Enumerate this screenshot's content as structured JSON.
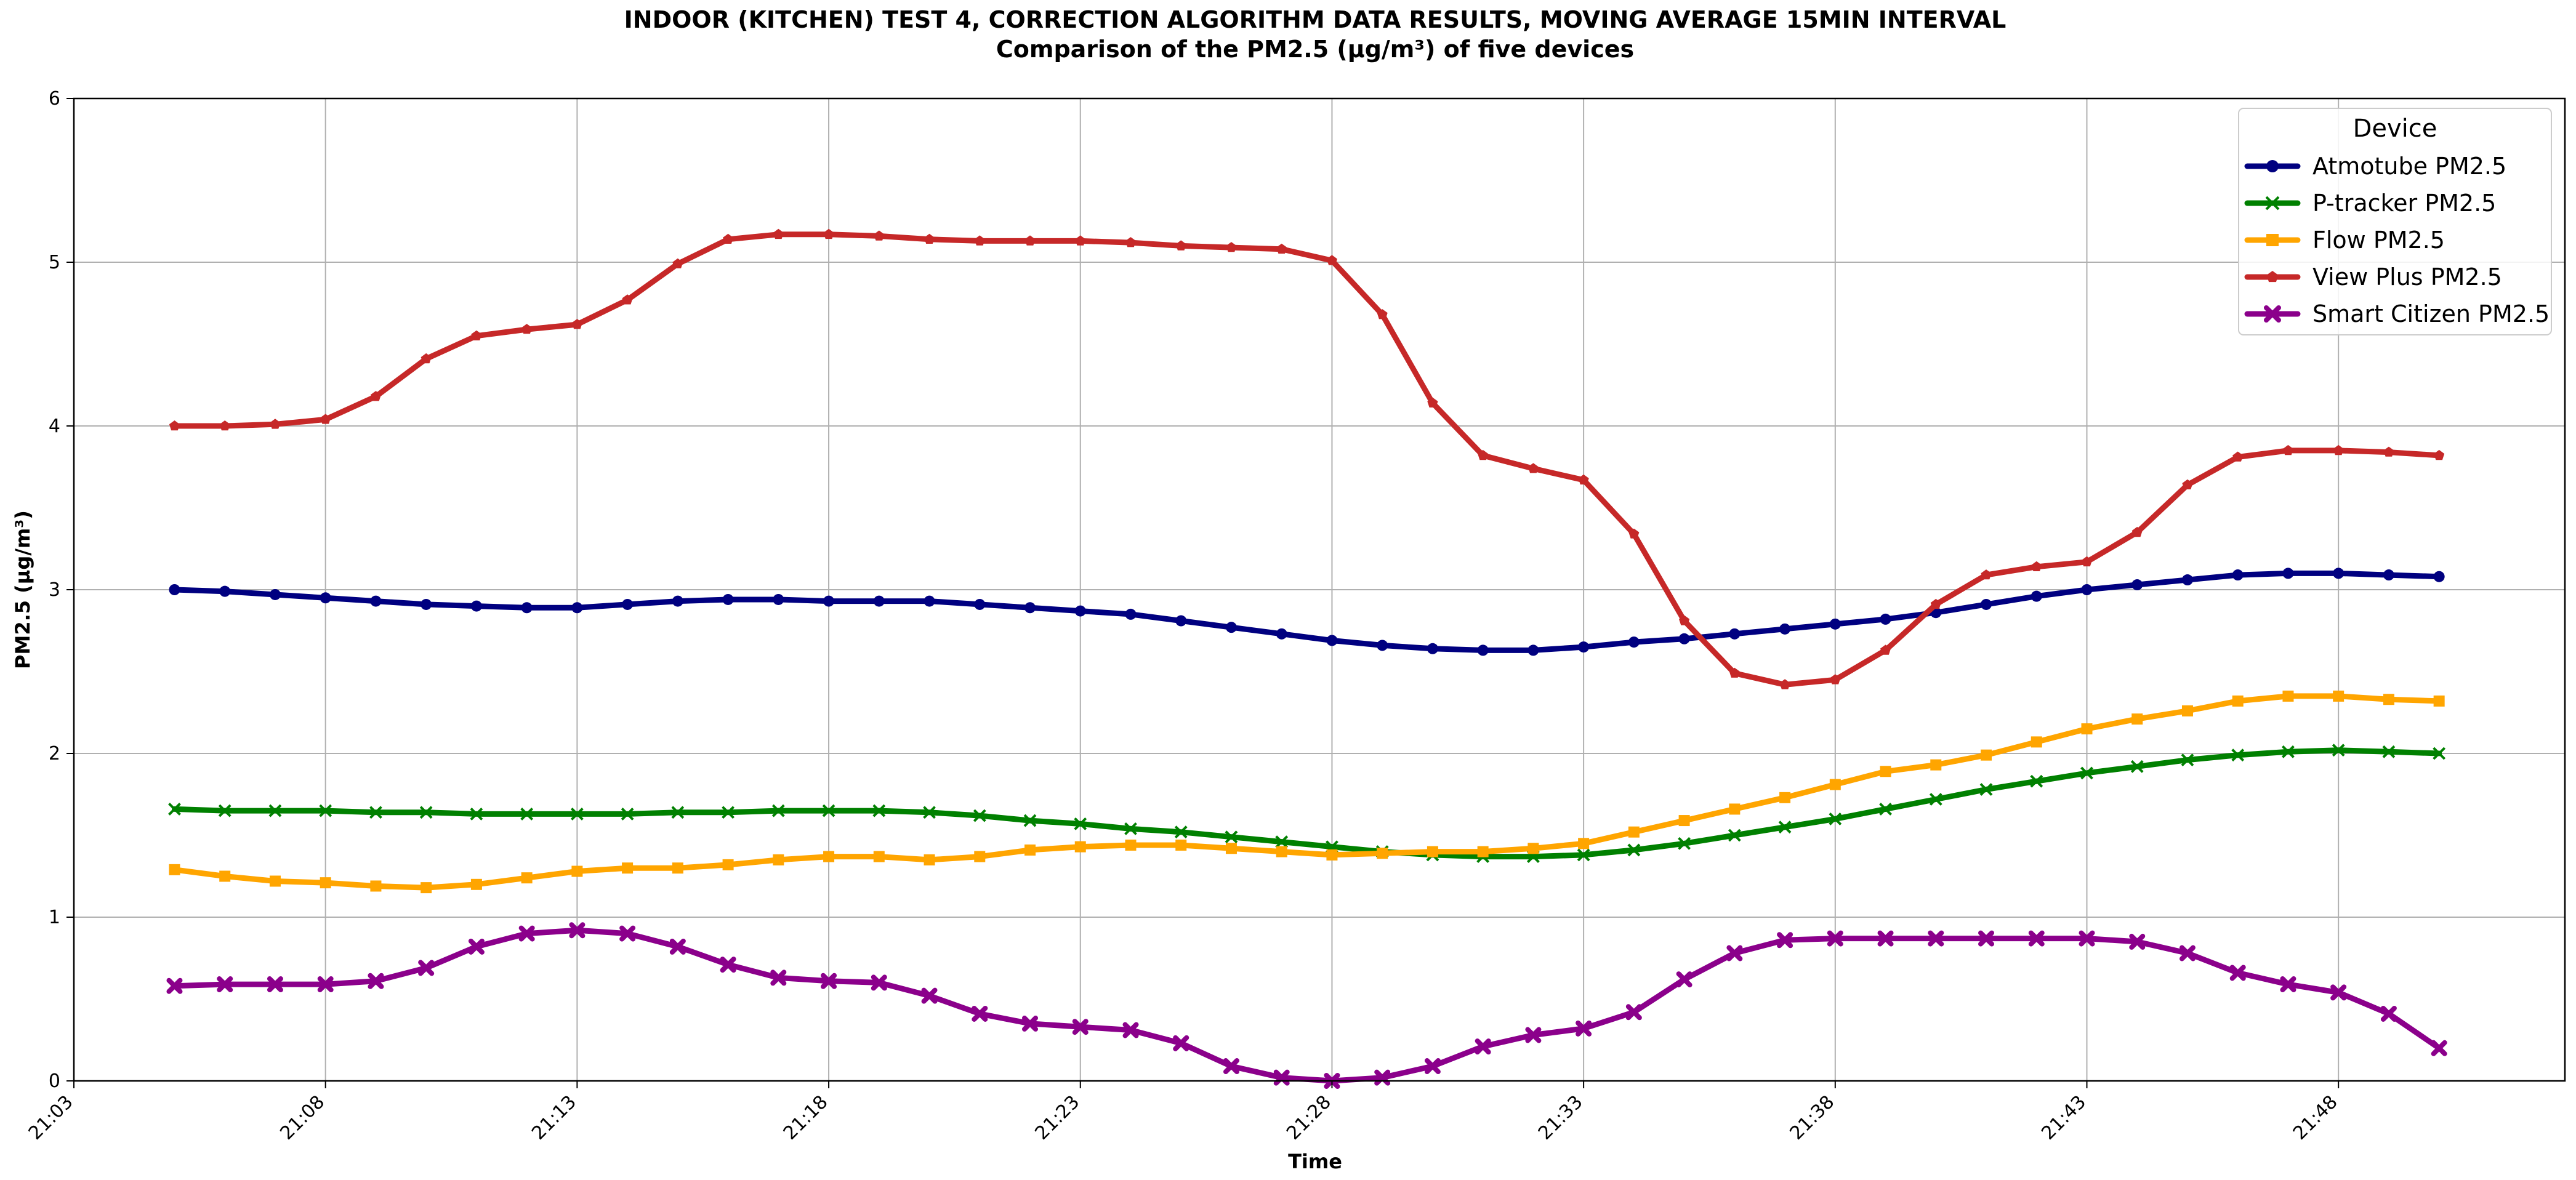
{
  "chart_data": {
    "type": "line",
    "title": "INDOOR (KITCHEN) TEST 4, CORRECTION ALGORITHM DATA RESULTS, MOVING AVERAGE 15MIN INTERVAL",
    "subtitle": "Comparison of the PM2.5 (µg/m³) of five devices",
    "xlabel": "Time",
    "ylabel": "PM2.5 (µg/m³)",
    "x_ticks": [
      "21:03",
      "21:08",
      "21:13",
      "21:18",
      "21:23",
      "21:28",
      "21:33",
      "21:38",
      "21:43",
      "21:48"
    ],
    "x_tick_minutes": [
      3,
      8,
      13,
      18,
      23,
      28,
      33,
      38,
      43,
      48
    ],
    "xlim_minutes": [
      3,
      52.5
    ],
    "y_ticks": [
      0,
      1,
      2,
      3,
      4,
      5,
      6
    ],
    "ylim": [
      0,
      6
    ],
    "grid": true,
    "legend": {
      "title": "Device",
      "location": "top-right"
    },
    "x_minutes": [
      5,
      6,
      7,
      8,
      9,
      10,
      11,
      12,
      13,
      14,
      15,
      16,
      17,
      18,
      19,
      20,
      21,
      22,
      23,
      24,
      25,
      26,
      27,
      28,
      29,
      30,
      31,
      32,
      33,
      34,
      35,
      36,
      37,
      38,
      39,
      40,
      41,
      42,
      43,
      44,
      45,
      46,
      47,
      48,
      49,
      50
    ],
    "series": [
      {
        "name": "Atmotube PM2.5",
        "color": "#000080",
        "marker": "circle",
        "values": [
          3.0,
          2.99,
          2.97,
          2.95,
          2.93,
          2.91,
          2.9,
          2.89,
          2.89,
          2.91,
          2.93,
          2.94,
          2.94,
          2.93,
          2.93,
          2.93,
          2.91,
          2.89,
          2.87,
          2.85,
          2.81,
          2.77,
          2.73,
          2.69,
          2.66,
          2.64,
          2.63,
          2.63,
          2.65,
          2.68,
          2.7,
          2.73,
          2.76,
          2.79,
          2.82,
          2.86,
          2.91,
          2.96,
          3.0,
          3.03,
          3.06,
          3.09,
          3.1,
          3.1,
          3.09,
          3.08
        ]
      },
      {
        "name": "P-tracker PM2.5",
        "color": "#008000",
        "marker": "x",
        "values": [
          1.66,
          1.65,
          1.65,
          1.65,
          1.64,
          1.64,
          1.63,
          1.63,
          1.63,
          1.63,
          1.64,
          1.64,
          1.65,
          1.65,
          1.65,
          1.64,
          1.62,
          1.59,
          1.57,
          1.54,
          1.52,
          1.49,
          1.46,
          1.43,
          1.4,
          1.38,
          1.37,
          1.37,
          1.38,
          1.41,
          1.45,
          1.5,
          1.55,
          1.6,
          1.66,
          1.72,
          1.78,
          1.83,
          1.88,
          1.92,
          1.96,
          1.99,
          2.01,
          2.02,
          2.01,
          2.0
        ]
      },
      {
        "name": "Flow PM2.5",
        "color": "#FFA500",
        "marker": "square",
        "values": [
          1.29,
          1.25,
          1.22,
          1.21,
          1.19,
          1.18,
          1.2,
          1.24,
          1.28,
          1.3,
          1.3,
          1.32,
          1.35,
          1.37,
          1.37,
          1.35,
          1.37,
          1.41,
          1.43,
          1.44,
          1.44,
          1.42,
          1.4,
          1.38,
          1.39,
          1.4,
          1.4,
          1.42,
          1.45,
          1.52,
          1.59,
          1.66,
          1.73,
          1.81,
          1.89,
          1.93,
          1.99,
          2.07,
          2.15,
          2.21,
          2.26,
          2.32,
          2.35,
          2.35,
          2.33,
          2.32
        ]
      },
      {
        "name": "View Plus PM2.5",
        "color": "#C62828",
        "marker": "pentagon",
        "values": [
          4.0,
          4.0,
          4.01,
          4.04,
          4.18,
          4.41,
          4.55,
          4.59,
          4.62,
          4.77,
          4.99,
          5.14,
          5.17,
          5.17,
          5.16,
          5.14,
          5.13,
          5.13,
          5.13,
          5.12,
          5.1,
          5.09,
          5.08,
          5.01,
          4.68,
          4.14,
          3.82,
          3.74,
          3.67,
          3.34,
          2.81,
          2.49,
          2.42,
          2.45,
          2.63,
          2.91,
          3.09,
          3.14,
          3.17,
          3.35,
          3.64,
          3.81,
          3.85,
          3.85,
          3.84,
          3.82
        ]
      },
      {
        "name": "Smart Citizen PM2.5",
        "color": "#8B008B",
        "marker": "xfilled",
        "values": [
          0.58,
          0.59,
          0.59,
          0.59,
          0.61,
          0.69,
          0.82,
          0.9,
          0.92,
          0.9,
          0.82,
          0.71,
          0.63,
          0.61,
          0.6,
          0.52,
          0.41,
          0.35,
          0.33,
          0.31,
          0.23,
          0.09,
          0.02,
          0.0,
          0.02,
          0.09,
          0.21,
          0.28,
          0.32,
          0.42,
          0.62,
          0.78,
          0.86,
          0.87,
          0.87,
          0.87,
          0.87,
          0.87,
          0.87,
          0.85,
          0.78,
          0.66,
          0.59,
          0.54,
          0.41,
          0.2
        ]
      }
    ]
  }
}
